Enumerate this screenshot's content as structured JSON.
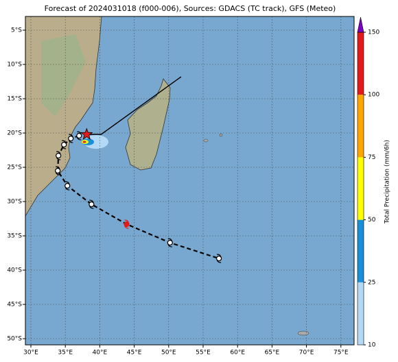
{
  "title": "Forecast of 2024031018 (f000-006), Sources: GDACS (TC track), GFS (Meteo)",
  "lon_ticks": [
    {
      "value": 30,
      "label": "30°E"
    },
    {
      "value": 35,
      "label": "35°E"
    },
    {
      "value": 40,
      "label": "40°E"
    },
    {
      "value": 45,
      "label": "45°E"
    },
    {
      "value": 50,
      "label": "50°E"
    },
    {
      "value": 55,
      "label": "55°E"
    },
    {
      "value": 60,
      "label": "60°E"
    },
    {
      "value": 65,
      "label": "65°E"
    },
    {
      "value": 70,
      "label": "70°E"
    },
    {
      "value": 75,
      "label": "75°E"
    }
  ],
  "lat_ticks": [
    {
      "value": -5,
      "label": "5°S"
    },
    {
      "value": -10,
      "label": "10°S"
    },
    {
      "value": -15,
      "label": "15°S"
    },
    {
      "value": -20,
      "label": "20°S"
    },
    {
      "value": -25,
      "label": "25°S"
    },
    {
      "value": -30,
      "label": "30°S"
    },
    {
      "value": -35,
      "label": "35°S"
    },
    {
      "value": -40,
      "label": "40°S"
    },
    {
      "value": -45,
      "label": "45°S"
    },
    {
      "value": -50,
      "label": "50°S"
    }
  ],
  "colorbar": {
    "label": "Total Precipitation (mm/6h)",
    "ticks": [
      10,
      25,
      50,
      75,
      100,
      150
    ],
    "colors": [
      "#b3d9f7",
      "#1a8fd9",
      "#ffff00",
      "#ffa500",
      "#e31a1c"
    ],
    "over_color": "#7b00c8"
  },
  "observed_track": [
    {
      "lon": 51.8,
      "lat": -11.8
    },
    {
      "lon": 40.2,
      "lat": -20.2
    },
    {
      "lon": 38.1,
      "lat": -20.2
    }
  ],
  "current_position": {
    "lon": 38.1,
    "lat": -20.2
  },
  "forecast_track": [
    {
      "lon": 37.0,
      "lat": -20.4
    },
    {
      "lon": 35.8,
      "lat": -20.8
    },
    {
      "lon": 34.8,
      "lat": -21.7
    },
    {
      "lon": 34.0,
      "lat": -23.3
    },
    {
      "lon": 33.9,
      "lat": -25.5
    },
    {
      "lon": 35.3,
      "lat": -27.7
    },
    {
      "lon": 38.8,
      "lat": -30.4
    },
    {
      "lon": 43.9,
      "lat": -33.3
    },
    {
      "lon": 50.2,
      "lat": -36.0
    },
    {
      "lon": 57.3,
      "lat": -38.3
    }
  ]
}
